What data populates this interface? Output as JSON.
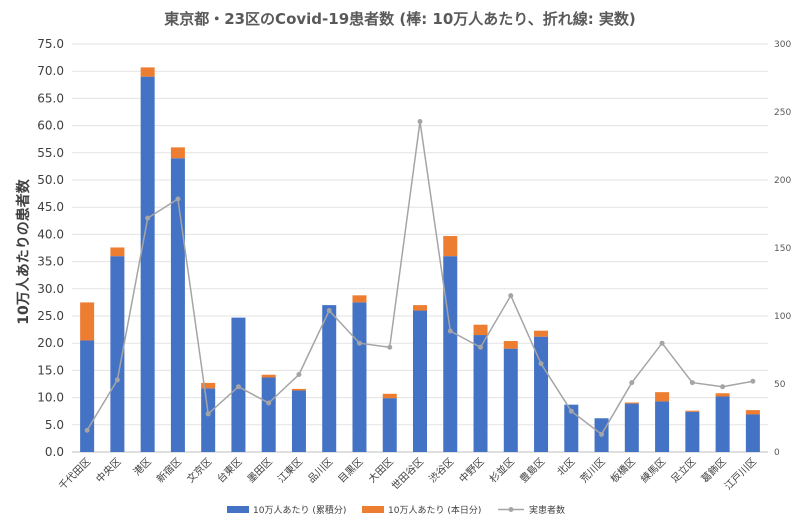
{
  "chart_data": {
    "type": "bar",
    "title": "東京都・23区のCovid-19患者数 (棒: 10万人あたり、折れ線: 実数)",
    "ylabel": "10万人あたりの患者数",
    "xlabel": "",
    "ylim": [
      0,
      75
    ],
    "y2lim": [
      0,
      300
    ],
    "y_ticks": [
      "0.0",
      "5.0",
      "10.0",
      "15.0",
      "20.0",
      "25.0",
      "30.0",
      "35.0",
      "40.0",
      "45.0",
      "50.0",
      "55.0",
      "60.0",
      "65.0",
      "70.0",
      "75.0"
    ],
    "y2_ticks": [
      "0",
      "50",
      "100",
      "150",
      "200",
      "250",
      "300"
    ],
    "categories": [
      "千代田区",
      "中央区",
      "港区",
      "新宿区",
      "文京区",
      "台東区",
      "墨田区",
      "江東区",
      "品川区",
      "目黒区",
      "大田区",
      "世田谷区",
      "渋谷区",
      "中野区",
      "杉並区",
      "豊島区",
      "北区",
      "荒川区",
      "板橋区",
      "練馬区",
      "足立区",
      "葛飾区",
      "江戸川区"
    ],
    "series": [
      {
        "name": "10万人あたり (累積分)",
        "kind": "bar-stack",
        "color": "#4472C4",
        "values": [
          20.5,
          36.0,
          69.0,
          54.0,
          11.7,
          24.7,
          13.7,
          11.3,
          27.0,
          27.5,
          9.9,
          26.0,
          36.0,
          21.5,
          19.0,
          21.2,
          8.7,
          6.2,
          8.9,
          9.3,
          7.4,
          10.2,
          6.9
        ]
      },
      {
        "name": "10万人あたり (本日分)",
        "kind": "bar-stack",
        "color": "#ED7D31",
        "values": [
          7.0,
          1.6,
          1.7,
          2.0,
          1.0,
          0.0,
          0.5,
          0.3,
          0.0,
          1.3,
          0.8,
          1.0,
          3.7,
          1.9,
          1.4,
          1.1,
          0.0,
          0.0,
          0.2,
          1.7,
          0.2,
          0.6,
          0.8
        ]
      },
      {
        "name": "実患者数",
        "kind": "line",
        "axis": "right",
        "color": "#A5A5A5",
        "values": [
          16,
          53,
          172,
          186,
          28,
          48,
          36,
          57,
          104,
          80,
          77,
          243,
          89,
          77,
          115,
          65,
          30,
          13,
          51,
          80,
          51,
          48,
          52
        ]
      }
    ],
    "legend_position": "bottom",
    "grid": true
  }
}
